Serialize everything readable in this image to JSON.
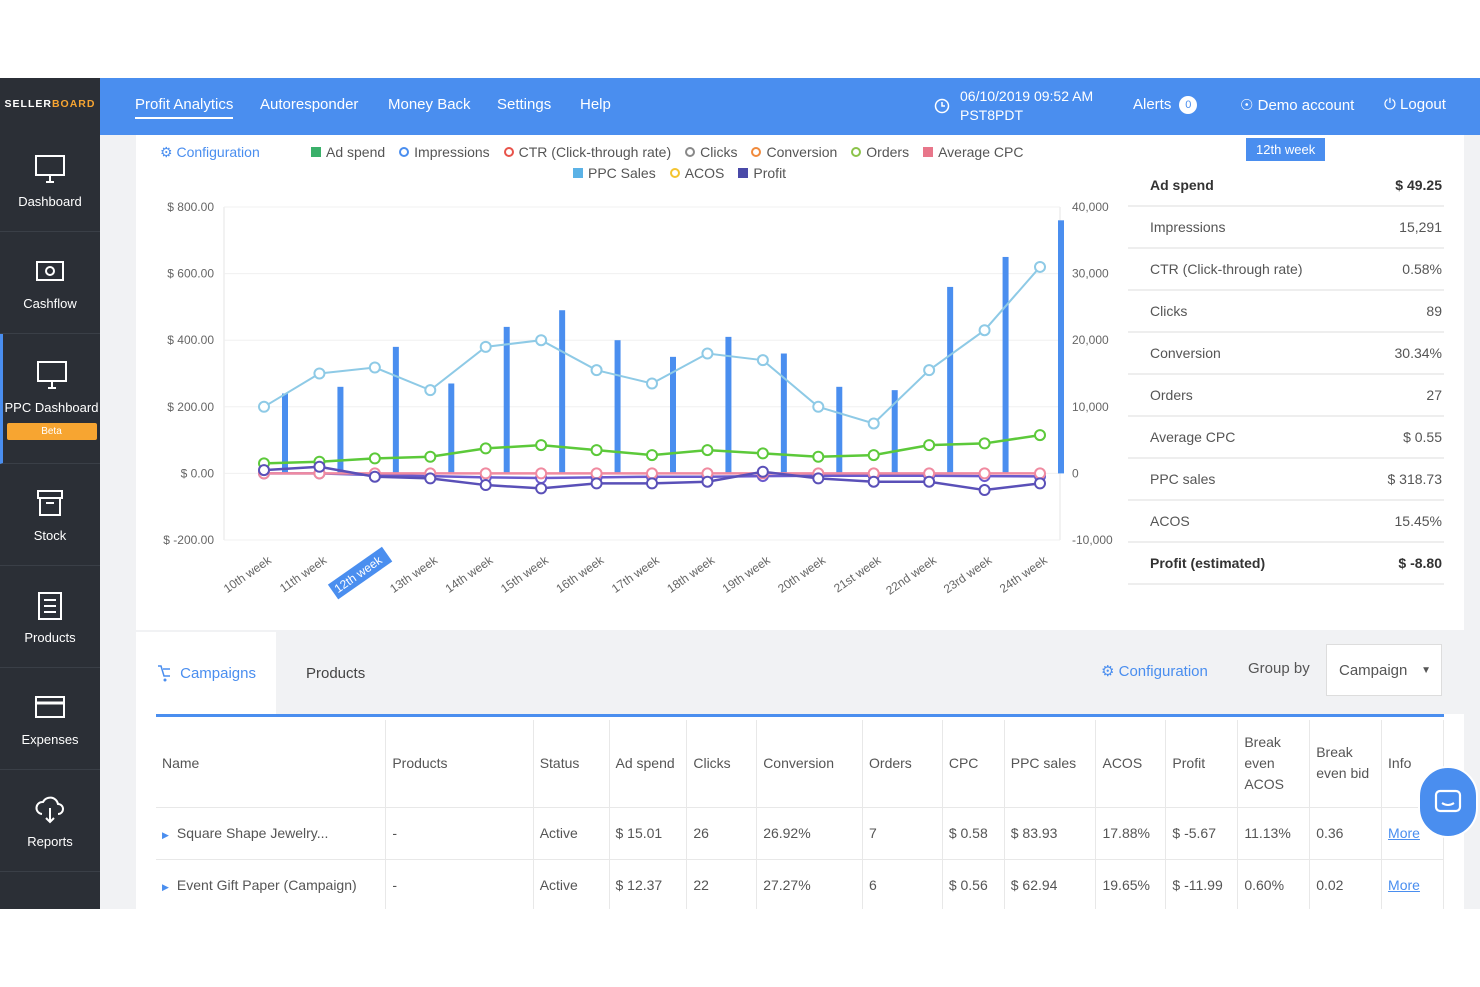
{
  "app": {
    "brand_a": "SELLER",
    "brand_b": "BOARD"
  },
  "sidebar": {
    "items": [
      {
        "label": "Dashboard",
        "icon": "monitor-icon"
      },
      {
        "label": "Cashflow",
        "icon": "cash-icon"
      },
      {
        "label": "PPC Dashboard",
        "icon": "monitor-icon",
        "badge": "Beta"
      },
      {
        "label": "Stock",
        "icon": "box-icon"
      },
      {
        "label": "Products",
        "icon": "clipboard-icon"
      },
      {
        "label": "Expenses",
        "icon": "card-icon"
      },
      {
        "label": "Reports",
        "icon": "cloud-download-icon"
      }
    ]
  },
  "topnav": {
    "items": [
      "Profit Analytics",
      "Autoresponder",
      "Money Back",
      "Settings",
      "Help"
    ],
    "datetime_line1": "06/10/2019 09:52 AM",
    "datetime_line2": "PST8PDT",
    "alerts": "Alerts",
    "alerts_count": "0",
    "account": "Demo account",
    "logout": "Logout"
  },
  "chart": {
    "config_label": "Configuration",
    "selected_week": "12th week",
    "legend": [
      {
        "name": "Ad spend",
        "color": "#3ab06a",
        "shape": "square"
      },
      {
        "name": "Impressions",
        "color": "#4a8eef",
        "shape": "circle"
      },
      {
        "name": "CTR (Click-through rate)",
        "color": "#e8534a",
        "shape": "circle"
      },
      {
        "name": "Clicks",
        "color": "#888888",
        "shape": "circle"
      },
      {
        "name": "Conversion",
        "color": "#f08a3c",
        "shape": "circle"
      },
      {
        "name": "Orders",
        "color": "#8bc34a",
        "shape": "circle"
      },
      {
        "name": "Average CPC",
        "color": "#e8768a",
        "shape": "square"
      },
      {
        "name": "PPC Sales",
        "color": "#5bb2e6",
        "shape": "square"
      },
      {
        "name": "ACOS",
        "color": "#f4c430",
        "shape": "circle"
      },
      {
        "name": "Profit",
        "color": "#4a4aa8",
        "shape": "square"
      }
    ]
  },
  "chart_data": {
    "type": "bar",
    "categories": [
      "10th week",
      "11th week",
      "12th week",
      "13th week",
      "14th week",
      "15th week",
      "16th week",
      "17th week",
      "18th week",
      "19th week",
      "20th week",
      "21st week",
      "22nd week",
      "23rd week",
      "24th week"
    ],
    "y_left_ticks": [
      "$ 800.00",
      "$ 600.00",
      "$ 400.00",
      "$ 200.00",
      "$ 0.00",
      "$ -200.00"
    ],
    "y_left_lim": [
      -200,
      800
    ],
    "y_right_ticks": [
      "40,000",
      "30,000",
      "20,000",
      "10,000",
      "0",
      "-10,000"
    ],
    "y_right_lim": [
      -10000,
      40000
    ],
    "series": [
      {
        "name": "Impressions",
        "type": "bar",
        "axis": "right",
        "values": [
          12000,
          13000,
          19000,
          13500,
          22000,
          24500,
          20000,
          17500,
          20500,
          18000,
          13000,
          12500,
          28000,
          32500,
          38000
        ]
      },
      {
        "name": "PPC Sales",
        "type": "line",
        "axis": "left",
        "values": [
          200,
          300,
          318,
          250,
          380,
          400,
          310,
          270,
          360,
          340,
          200,
          150,
          310,
          430,
          620
        ]
      },
      {
        "name": "Orders",
        "type": "line",
        "axis": "left",
        "values": [
          30,
          35,
          45,
          50,
          75,
          85,
          70,
          55,
          70,
          60,
          50,
          55,
          85,
          90,
          115
        ]
      },
      {
        "name": "Ad spend",
        "type": "line",
        "axis": "left",
        "values": [
          0,
          0,
          -5,
          -8,
          -12,
          -14,
          -12,
          -10,
          -10,
          -8,
          -7,
          -7,
          -7,
          -8,
          -9
        ]
      },
      {
        "name": "Average CPC",
        "type": "line",
        "axis": "left",
        "values": [
          0,
          0,
          0,
          0,
          0,
          0,
          0,
          0,
          0,
          0,
          0,
          0,
          0,
          0,
          0
        ]
      },
      {
        "name": "Profit",
        "type": "line",
        "axis": "left",
        "values": [
          10,
          20,
          -10,
          -15,
          -35,
          -45,
          -30,
          -30,
          -25,
          5,
          -15,
          -25,
          -25,
          -50,
          -30
        ]
      }
    ]
  },
  "stats": [
    {
      "label": "Ad spend",
      "value": "$ 49.25",
      "bold": true
    },
    {
      "label": "Impressions",
      "value": "15,291"
    },
    {
      "label": "CTR (Click-through rate)",
      "value": "0.58%"
    },
    {
      "label": "Clicks",
      "value": "89"
    },
    {
      "label": "Conversion",
      "value": "30.34%"
    },
    {
      "label": "Orders",
      "value": "27"
    },
    {
      "label": "Average CPC",
      "value": "$ 0.55"
    },
    {
      "label": "PPC sales",
      "value": "$ 318.73"
    },
    {
      "label": "ACOS",
      "value": "15.45%"
    },
    {
      "label": "Profit (estimated)",
      "value": "$ -8.80",
      "bold": true
    }
  ],
  "table": {
    "tab_campaigns": "Campaigns",
    "tab_products": "Products",
    "config": "Configuration",
    "group_by": "Group by",
    "group_value": "Campaign",
    "columns": [
      "Name",
      "Products",
      "Status",
      "Ad spend",
      "Clicks",
      "Conversion",
      "Orders",
      "CPC",
      "PPC sales",
      "ACOS",
      "Profit",
      "Break even ACOS",
      "Break even bid",
      "Info"
    ],
    "rows": [
      [
        "Square Shape Jewelry...",
        "-",
        "Active",
        "$ 15.01",
        "26",
        "26.92%",
        "7",
        "$ 0.58",
        "$ 83.93",
        "17.88%",
        "$ -5.67",
        "11.13%",
        "0.36",
        "More"
      ],
      [
        "Event Gift Paper (Campaign)",
        "-",
        "Active",
        "$ 12.37",
        "22",
        "27.27%",
        "6",
        "$ 0.56",
        "$ 62.94",
        "19.65%",
        "$ -11.99",
        "0.60%",
        "0.02",
        "More"
      ]
    ]
  }
}
